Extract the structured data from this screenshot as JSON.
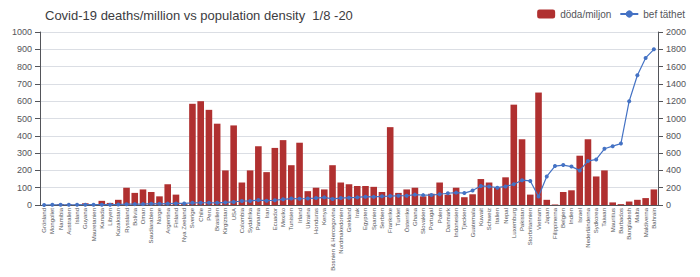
{
  "chart_data": {
    "type": "bar",
    "title": "Covid-19 deaths/million vs population density  1/8 -20",
    "categories": [
      "Grönland",
      "Mongoliet",
      "Namibia",
      "Australien",
      "Island",
      "Guyana",
      "Mauretanien",
      "Kanada",
      "Libyen",
      "Kazakstan",
      "Ryssland",
      "Bolivia",
      "Oman",
      "Saudiarabien",
      "Norge",
      "Argentina",
      "Finland",
      "Nya Zeeland",
      "Sverige",
      "Chile",
      "Peru",
      "Brasilien",
      "Kirgizstan",
      "USA",
      "Colombia",
      "Sydafrika",
      "Panama",
      "Iran",
      "Ecuador",
      "Mexiko",
      "Tunisien",
      "Irland",
      "Ukraina",
      "Honduras",
      "Kenya",
      "Bosnien & Hercegovina",
      "Nordmakedonien",
      "Grekland",
      "Irak",
      "Egypten",
      "Spanien",
      "Serbien",
      "Frankrike",
      "Turkiet",
      "Österrike",
      "Ghana",
      "Slovakien",
      "Portugal",
      "Polen",
      "Danmark",
      "Indonesien",
      "Tjeckien",
      "Guatemala",
      "Kuwait",
      "Schweiz",
      "Italien",
      "Nepal",
      "Luxemburg",
      "Pakistan",
      "Storbritannien",
      "Vietnam",
      "Japan",
      "Filippinerna",
      "Belgien",
      "Indien",
      "Israel",
      "Nederländerna",
      "Sydkorea",
      "Taiwan",
      "Mauritius",
      "Barbados",
      "Bangladesh",
      "Malta",
      "Maldiverna",
      "Bahrain"
    ],
    "series": [
      {
        "name": "döda/miljon",
        "type": "bar",
        "color": "#b03030",
        "values": [
          0,
          0,
          5,
          3,
          2,
          10,
          5,
          24,
          12,
          30,
          100,
          70,
          90,
          75,
          50,
          120,
          60,
          5,
          585,
          600,
          550,
          470,
          200,
          460,
          130,
          200,
          340,
          190,
          330,
          375,
          230,
          360,
          80,
          100,
          90,
          230,
          130,
          120,
          110,
          110,
          105,
          75,
          450,
          70,
          90,
          100,
          50,
          65,
          130,
          60,
          100,
          45,
          62,
          150,
          130,
          100,
          160,
          580,
          380,
          60,
          650,
          30,
          3,
          75,
          85,
          285,
          380,
          165,
          200,
          15,
          5,
          20,
          30,
          40,
          90
        ]
      },
      {
        "name": "bef täthet",
        "type": "line",
        "color": "#4472c4",
        "axis": "y2",
        "marker": "circle",
        "values": [
          0.1,
          2,
          3,
          3,
          3,
          4,
          4,
          4,
          4,
          6,
          9,
          10,
          10,
          15,
          14,
          16,
          18,
          18,
          25,
          26,
          26,
          25,
          30,
          35,
          46,
          47,
          57,
          50,
          55,
          66,
          74,
          72,
          75,
          80,
          88,
          70,
          80,
          85,
          88,
          96,
          94,
          100,
          103,
          107,
          107,
          120,
          114,
          115,
          124,
          136,
          143,
          138,
          167,
          220,
          214,
          200,
          215,
          240,
          287,
          278,
          98,
          330,
          450,
          462,
          444,
          400,
          508,
          527,
          650,
          680,
          710,
          1200,
          1500,
          1700,
          1800
        ]
      }
    ],
    "ylim": [
      0,
      1000
    ],
    "yticks": [
      0,
      100,
      200,
      300,
      400,
      500,
      600,
      700,
      800,
      900,
      1000
    ],
    "y2lim": [
      0,
      2000
    ],
    "y2ticks": [
      0,
      200,
      400,
      600,
      800,
      1000,
      1200,
      1400,
      1600,
      1800,
      2000
    ],
    "grid": true,
    "legend": "upper right"
  }
}
